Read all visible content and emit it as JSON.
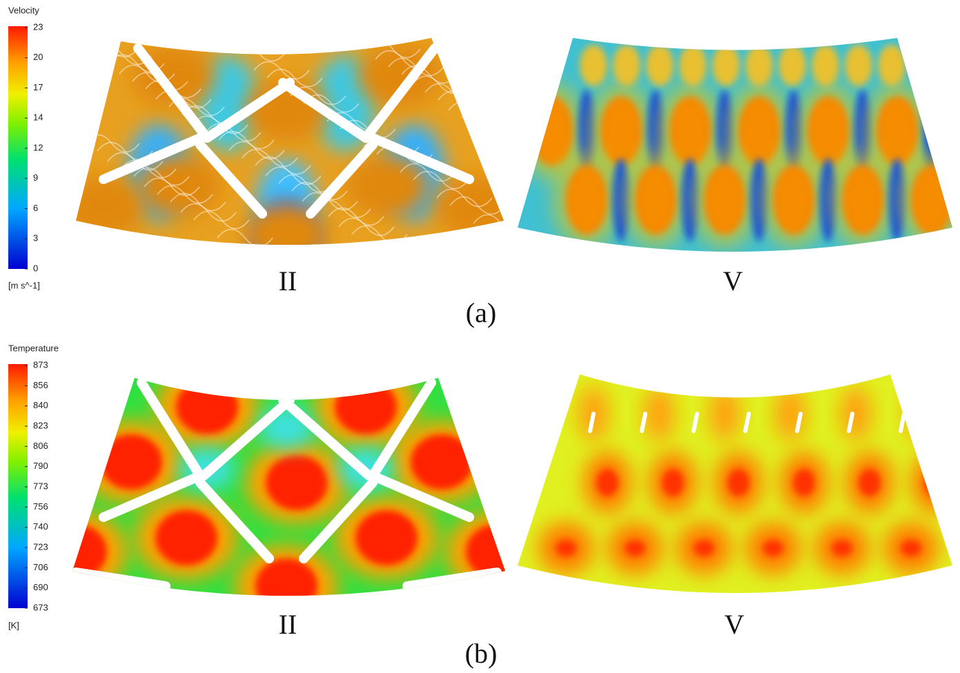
{
  "panel_a": {
    "legend": {
      "title": "Velocity",
      "ticks": [
        "23",
        "20",
        "17",
        "14",
        "12",
        "9",
        "6",
        "3",
        "0"
      ],
      "unit": "[m s^-1]"
    },
    "left_label": "II",
    "right_label": "V",
    "caption": "(a)"
  },
  "panel_b": {
    "legend": {
      "title": "Temperature",
      "ticks": [
        "873",
        "856",
        "840",
        "823",
        "806",
        "790",
        "773",
        "756",
        "740",
        "723",
        "706",
        "690",
        "673"
      ],
      "unit": "[K]"
    },
    "left_label": "II",
    "right_label": "V",
    "caption": "(b)"
  }
}
